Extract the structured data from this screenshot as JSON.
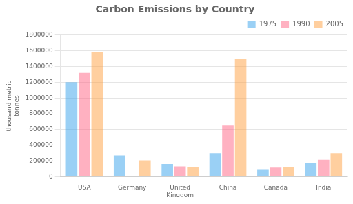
{
  "chart_data": {
    "type": "bar",
    "title": "Carbon Emissions by Country",
    "ylabel": "thousand metric\ntonnes",
    "categories": [
      "USA",
      "Germany",
      "United\nKingdom",
      "China",
      "Canada",
      "India"
    ],
    "series": [
      {
        "name": "1975",
        "values": [
          1200000,
          270000,
          160000,
          300000,
          95000,
          170000
        ]
      },
      {
        "name": "1990",
        "values": [
          1320000,
          0,
          130000,
          650000,
          115000,
          215000
        ]
      },
      {
        "name": "2005",
        "values": [
          1580000,
          210000,
          120000,
          1500000,
          120000,
          300000
        ]
      }
    ],
    "ylim": [
      0,
      1800000
    ],
    "yticks": [
      0,
      200000,
      400000,
      600000,
      800000,
      1000000,
      1200000,
      1400000,
      1600000,
      1800000
    ],
    "grid": true,
    "legend": "upper right"
  }
}
